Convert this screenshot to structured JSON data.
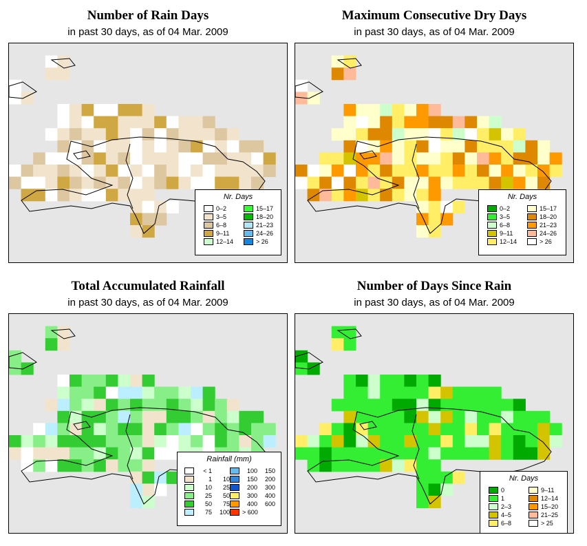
{
  "panels": [
    {
      "title": "Number of Rain Days",
      "subtitle": "in past 30 days, as of  04 Mar. 2009",
      "legend_title": "Nr. Days",
      "legend_items": [
        {
          "label": "0–2",
          "color": "#ffffff"
        },
        {
          "label": "3–5",
          "color": "#f2e4cc"
        },
        {
          "label": "6–8",
          "color": "#dcc7a0"
        },
        {
          "label": "9–11",
          "color": "#cfa843"
        },
        {
          "label": "12–14",
          "color": "#ccffcc"
        },
        {
          "label": "15–17",
          "color": "#33ff33"
        },
        {
          "label": "18–20",
          "color": "#00bb00"
        },
        {
          "label": "21–23",
          "color": "#b3e6f5"
        },
        {
          "label": "24–26",
          "color": "#66bbee"
        },
        {
          "label": "> 26",
          "color": "#1188dd"
        }
      ]
    },
    {
      "title": "Maximum Consecutive Dry Days",
      "subtitle": "in past 30 days, as of  04 Mar. 2009",
      "legend_title": "Nr. Days",
      "legend_items": [
        {
          "label": "0–2",
          "color": "#00aa00"
        },
        {
          "label": "3–5",
          "color": "#33ee33"
        },
        {
          "label": "6–8",
          "color": "#ccffcc"
        },
        {
          "label": "9–11",
          "color": "#d4c400"
        },
        {
          "label": "12–14",
          "color": "#ffee66"
        },
        {
          "label": "15–17",
          "color": "#ffffcc"
        },
        {
          "label": "18–20",
          "color": "#dd8800"
        },
        {
          "label": "21–23",
          "color": "#ff9900"
        },
        {
          "label": "24–26",
          "color": "#ffbb99"
        },
        {
          "label": "> 26",
          "color": "#ffffff"
        }
      ]
    },
    {
      "title": "Total Accumulated Rainfall",
      "subtitle": "in past 30 days, as of  04 Mar. 2009",
      "legend_title": "Rainfall (mm)",
      "legend_items": [
        {
          "lo": "< 1",
          "hi": "",
          "color": "#ffffff"
        },
        {
          "lo": "1",
          "hi": "10",
          "color": "#f2e4cc"
        },
        {
          "lo": "10",
          "hi": "25",
          "color": "#ccffcc"
        },
        {
          "lo": "25",
          "hi": "50",
          "color": "#88ee88"
        },
        {
          "lo": "50",
          "hi": "75",
          "color": "#33cc33"
        },
        {
          "lo": "75",
          "hi": "100",
          "color": "#bbeeff"
        },
        {
          "lo": "100",
          "hi": "150",
          "color": "#66bbee"
        },
        {
          "lo": "150",
          "hi": "200",
          "color": "#3388dd"
        },
        {
          "lo": "200",
          "hi": "300",
          "color": "#1155cc"
        },
        {
          "lo": "300",
          "hi": "400",
          "color": "#ffee66"
        },
        {
          "lo": "400",
          "hi": "600",
          "color": "#ff9900"
        },
        {
          "lo": "> 600",
          "hi": "",
          "color": "#ff3300"
        }
      ]
    },
    {
      "title": "Number of Days Since Rain",
      "subtitle": "in past 30 days, as of  04 Mar. 2009",
      "legend_title": "Nr. Days",
      "legend_items": [
        {
          "label": "0",
          "color": "#00aa00"
        },
        {
          "label": "1",
          "color": "#33ee33"
        },
        {
          "label": "2–3",
          "color": "#ccffcc"
        },
        {
          "label": "4–5",
          "color": "#d4c400"
        },
        {
          "label": "6–8",
          "color": "#ffee66"
        },
        {
          "label": "9–11",
          "color": "#ffffcc"
        },
        {
          "label": "12–14",
          "color": "#dd8800"
        },
        {
          "label": "15–20",
          "color": "#ff9900"
        },
        {
          "label": "21–25",
          "color": "#ffbb99"
        },
        {
          "label": "> 25",
          "color": "#ffffff"
        }
      ]
    }
  ]
}
